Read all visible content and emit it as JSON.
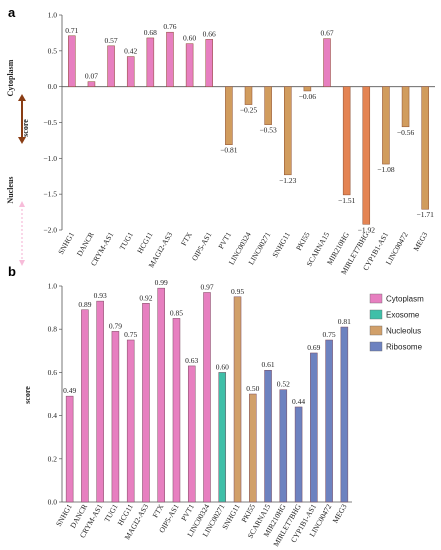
{
  "chart_data": [
    {
      "panel": "a",
      "type": "bar",
      "ylabel": "score",
      "side_labels": {
        "top": "Cytoplasm",
        "bottom": "Nucleus"
      },
      "ylim": [
        -2.0,
        1.0
      ],
      "yticks": [
        "1.0",
        "0.5",
        "0.0",
        "−0.5",
        "−1.0",
        "−1.5",
        "−2.0"
      ],
      "ytick_values": [
        1.0,
        0.5,
        0.0,
        -0.5,
        -1.0,
        -1.5,
        -2.0
      ],
      "categories": [
        "SNHG1",
        "DANCR",
        "CRYM-AS1",
        "TUG1",
        "HCG11",
        "MAGI2-AS3",
        "FTX",
        "OIP5-AS1",
        "PVT1",
        "LINC00324",
        "LINC00271",
        "SNHG11",
        "PKI55",
        "SCARNA15",
        "MIR210HG",
        "MIRLET7BHG",
        "CYP1B1-AS1",
        "LINC00472",
        "MEG3"
      ],
      "values": [
        0.71,
        0.07,
        0.57,
        0.42,
        0.68,
        0.76,
        0.6,
        0.66,
        -0.81,
        -0.25,
        -0.53,
        -1.23,
        -0.06,
        0.67,
        -1.51,
        -1.92,
        -1.08,
        -0.56,
        -1.71
      ],
      "labels": [
        "0.71",
        "0.07",
        "0.57",
        "0.42",
        "0.68",
        "0.76",
        "0.60",
        "0.66",
        "−0.81",
        "−0.25",
        "−0.53",
        "−1.23",
        "−0.06",
        "0.67",
        "−1.51",
        "−1.92",
        "−1.08",
        "−0.56",
        "−1.71"
      ],
      "colors": [
        "#e77fc0",
        "#e77fc0",
        "#e77fc0",
        "#e77fc0",
        "#e77fc0",
        "#e77fc0",
        "#e77fc0",
        "#e77fc0",
        "#d19c5e",
        "#d19c5e",
        "#d19c5e",
        "#d19c5e",
        "#d19c5e",
        "#e77fc0",
        "#e48453",
        "#e48453",
        "#d19c5e",
        "#d19c5e",
        "#d19c5e"
      ]
    },
    {
      "panel": "b",
      "type": "bar",
      "ylabel": "score",
      "ylim": [
        0.0,
        1.0
      ],
      "yticks": [
        "1.0",
        "0.8",
        "0.6",
        "0.4",
        "0.2",
        "0.0"
      ],
      "ytick_values": [
        1.0,
        0.8,
        0.6,
        0.4,
        0.2,
        0.0
      ],
      "categories": [
        "SNHG1",
        "DANCR",
        "CRYM-AS1",
        "TUG1",
        "HCG11",
        "MAGI2-AS3",
        "FTX",
        "OIP5-AS1",
        "PVT1",
        "LINC00324",
        "LINC00271",
        "SNHG11",
        "PKI55",
        "SCARNA15",
        "MIR210HG",
        "MIRLET7BHG",
        "CYP1B1-AS1",
        "LINC00472",
        "MEG3"
      ],
      "values": [
        0.49,
        0.89,
        0.93,
        0.79,
        0.75,
        0.92,
        0.99,
        0.85,
        0.63,
        0.97,
        0.6,
        0.95,
        0.5,
        0.61,
        0.52,
        0.44,
        0.69,
        0.75,
        0.81
      ],
      "labels": [
        "0.49",
        "0.89",
        "0.93",
        "0.79",
        "0.75",
        "0.92",
        "0.99",
        "0.85",
        "0.63",
        "0.97",
        "0.60",
        "0.95",
        "0.50",
        "0.61",
        "0.52",
        "0.44",
        "0.69",
        "0.75",
        "0.81"
      ],
      "groups": [
        "Cytoplasm",
        "Cytoplasm",
        "Cytoplasm",
        "Cytoplasm",
        "Cytoplasm",
        "Cytoplasm",
        "Cytoplasm",
        "Cytoplasm",
        "Cytoplasm",
        "Cytoplasm",
        "Exosome",
        "Nucleolus",
        "Nucleolus",
        "Ribosome",
        "Ribosome",
        "Ribosome",
        "Ribosome",
        "Ribosome",
        "Ribosome"
      ],
      "legend": [
        {
          "name": "Cytoplasm",
          "color": "#e77fc0"
        },
        {
          "name": "Exosome",
          "color": "#3fbfa8"
        },
        {
          "name": "Nucleolus",
          "color": "#d1a06a"
        },
        {
          "name": "Ribosome",
          "color": "#6d82c0"
        }
      ],
      "legend_position": "right"
    }
  ]
}
